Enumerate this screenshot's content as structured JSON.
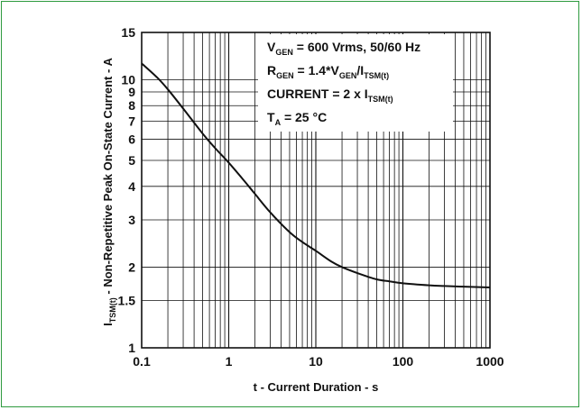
{
  "chart_data": {
    "type": "line",
    "xscale": "log",
    "yscale": "log",
    "xlim": [
      0.1,
      1000
    ],
    "ylim": [
      1,
      15
    ],
    "xticks": [
      0.1,
      1,
      10,
      100,
      1000
    ],
    "xtick_labels": [
      "0.1",
      "1",
      "10",
      "100",
      "1000"
    ],
    "yticks": [
      1,
      1.5,
      2,
      3,
      4,
      5,
      6,
      7,
      8,
      9,
      10,
      15
    ],
    "ytick_labels": [
      "1",
      "1.5",
      "2",
      "3",
      "4",
      "5",
      "6",
      "7",
      "8",
      "9",
      "10",
      "15"
    ],
    "xlabel": "t - Current Duration - s",
    "ylabel": {
      "main": "I",
      "sub": "TSM(t)",
      "rest": " - Non-Repetitive Peak On-State Current - A"
    },
    "grid": true,
    "series": [
      {
        "x": [
          0.1,
          0.15,
          0.2,
          0.3,
          0.5,
          0.7,
          1,
          1.5,
          2,
          3,
          5,
          7,
          10,
          15,
          20,
          30,
          50,
          70,
          100,
          200,
          300,
          500,
          1000
        ],
        "y": [
          11.5,
          10.2,
          9.2,
          7.8,
          6.3,
          5.55,
          4.9,
          4.2,
          3.75,
          3.2,
          2.7,
          2.48,
          2.3,
          2.1,
          2.0,
          1.9,
          1.8,
          1.77,
          1.74,
          1.71,
          1.7,
          1.69,
          1.68
        ]
      }
    ],
    "annotations": [
      {
        "parts": [
          {
            "t": "V"
          },
          {
            "t": "GEN",
            "sub": true
          },
          {
            "t": " = 600 Vrms, 50/60 Hz"
          }
        ]
      },
      {
        "parts": [
          {
            "t": "R"
          },
          {
            "t": "GEN",
            "sub": true
          },
          {
            "t": " = 1.4*V"
          },
          {
            "t": "GEN",
            "sub": true
          },
          {
            "t": "/I"
          },
          {
            "t": "TSM(t)",
            "sub": true
          }
        ]
      },
      {
        "parts": [
          {
            "t": "CURRENT = 2 x I"
          },
          {
            "t": "TSM(t)",
            "sub": true
          }
        ]
      },
      {
        "parts": [
          {
            "t": "T"
          },
          {
            "t": "A",
            "sub": true
          },
          {
            "t": "  = 25 °C"
          }
        ]
      }
    ],
    "colors": {
      "frame": "#2e9a3e",
      "line": "#111111",
      "grid": "#111111"
    }
  }
}
